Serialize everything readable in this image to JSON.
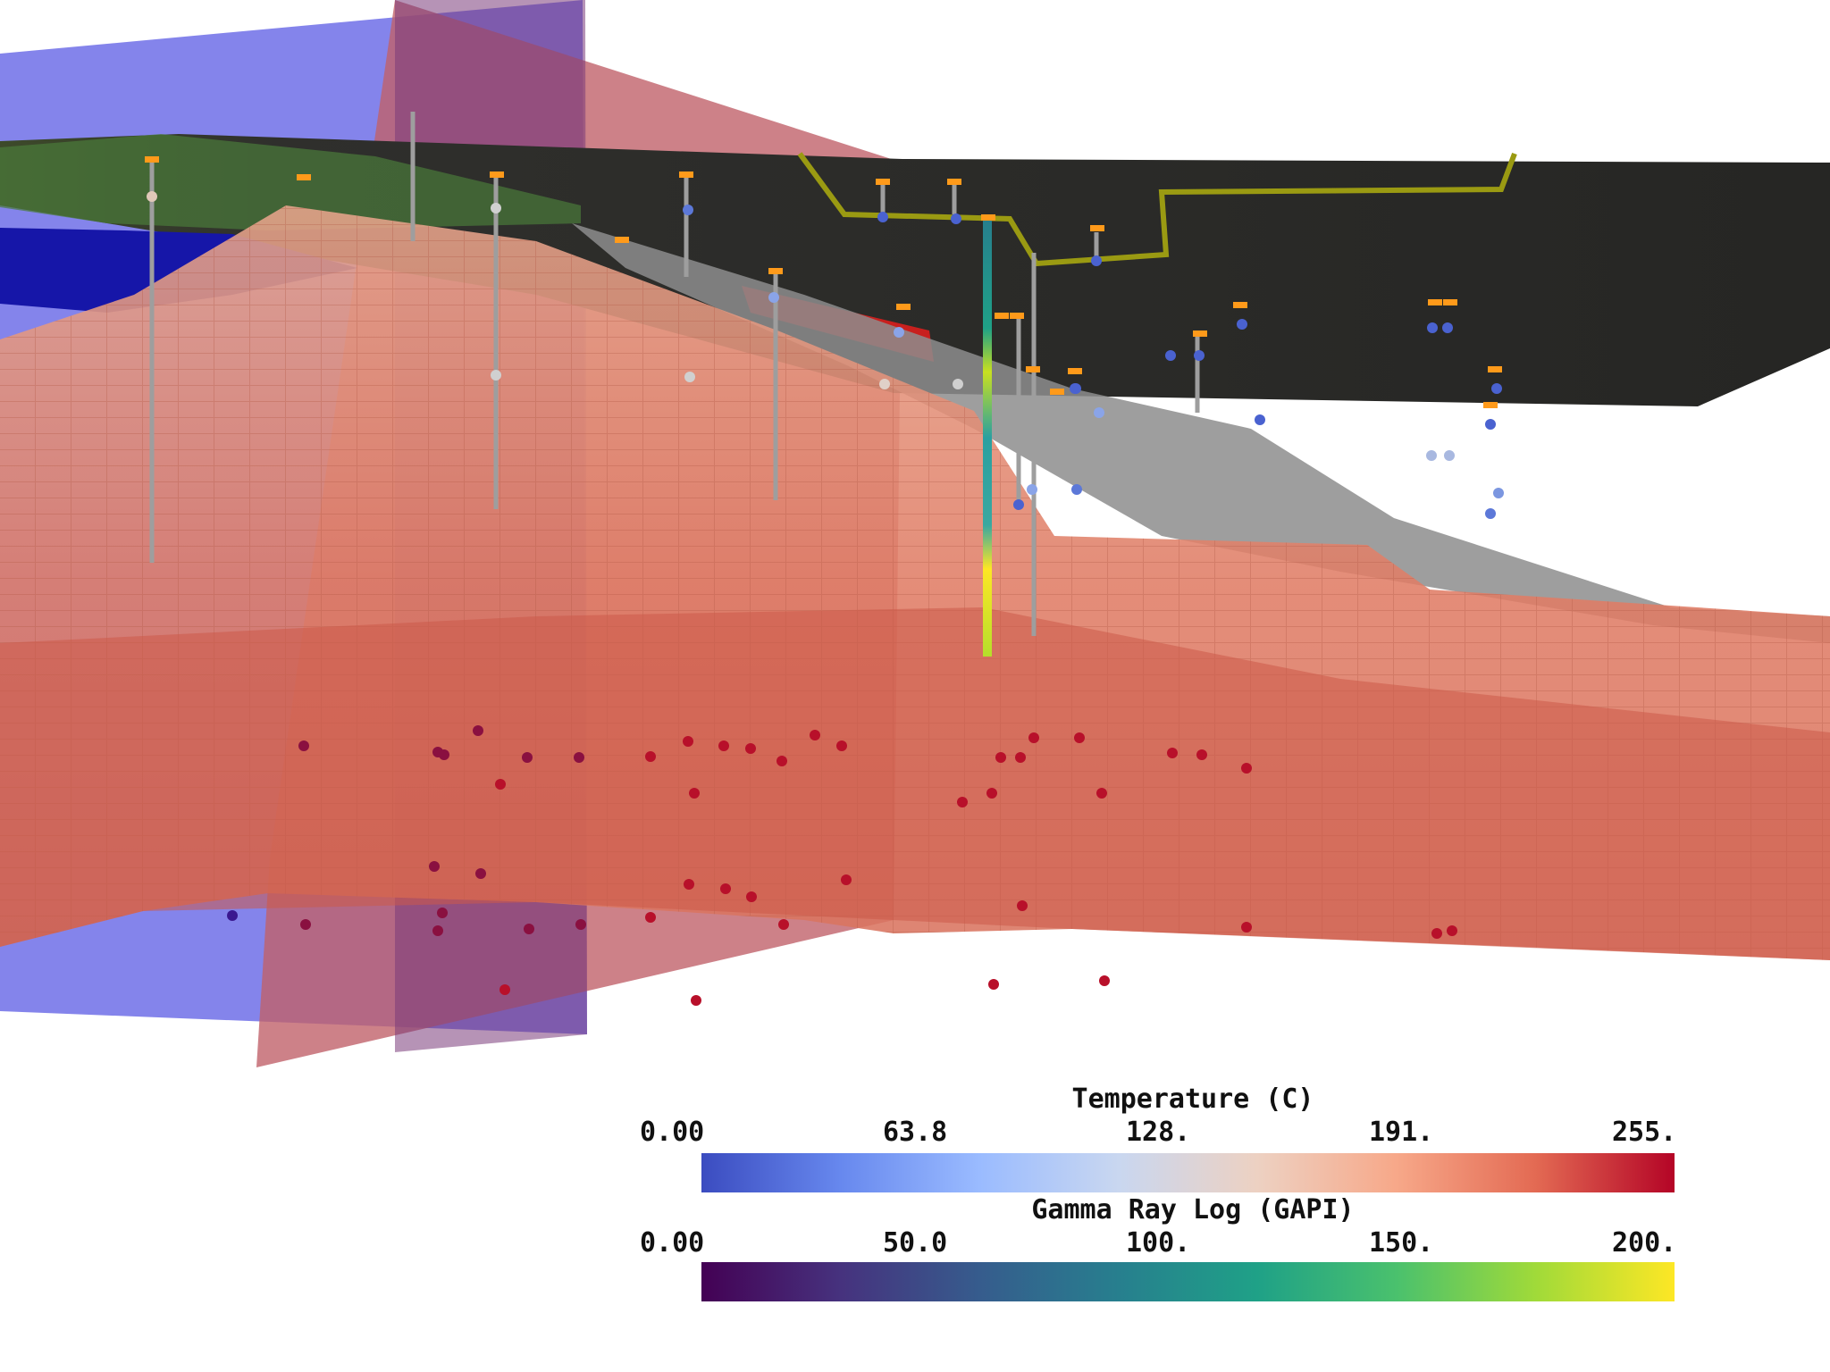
{
  "scene": {
    "description_free": true,
    "colors": {
      "background": "#ffffff",
      "terrain": "#2b2b29",
      "reservoir": "#e07a62",
      "plane_blue": "#6f6fe8",
      "plane_red": "#c0616a",
      "fault_gray": "#8c8c8c",
      "well_track": "#9e9e9e",
      "marker_orange": "#ff9a1a",
      "olive_line": "#9a9a12"
    }
  },
  "legend": {
    "temperature": {
      "title": "Temperature (C)",
      "ticks": [
        "0.00",
        "63.8",
        "128.",
        "191.",
        "255."
      ],
      "colormap": [
        "#3b4cc0",
        "#6788ee",
        "#9abbff",
        "#c9d7f0",
        "#edd1c2",
        "#f7a889",
        "#e36a53",
        "#b40426"
      ]
    },
    "gamma": {
      "title": "Gamma Ray Log (GAPI)",
      "ticks": [
        "0.00",
        "50.0",
        "100.",
        "150.",
        "200."
      ],
      "colormap": [
        "#440154",
        "#46327e",
        "#365c8d",
        "#277f8e",
        "#1fa187",
        "#4ac16d",
        "#a0da39",
        "#fde725"
      ]
    }
  }
}
